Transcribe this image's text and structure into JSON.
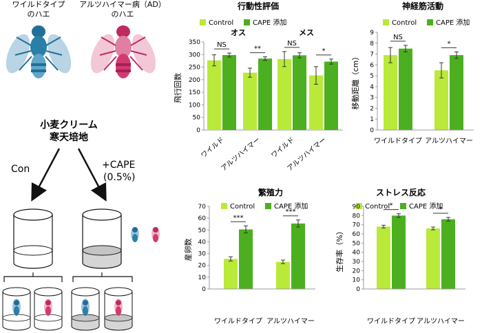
{
  "left": {
    "wild_fly_label": [
      "ワイルドタイプ",
      "のハエ"
    ],
    "ad_fly_label": [
      "アルツハイマー病（AD）",
      "のハエ"
    ],
    "medium_label": [
      "小麦クリーム",
      "寒天培地"
    ],
    "con_label": "Con",
    "cape_label": [
      "+CAPE",
      "(0.5%)"
    ]
  },
  "colors": {
    "control": "#b9ea3a",
    "cape": "#4caf1f",
    "blue_fly": "#2a7fa8",
    "pink_fly": "#d23a72"
  },
  "chart_data": [
    {
      "type": "bar",
      "title": "行動性評価",
      "subtitle_male": "オス",
      "subtitle_female": "メス",
      "ylabel": "飛行回数",
      "ylim": [
        0,
        350
      ],
      "yticks": [
        0,
        50,
        100,
        150,
        200,
        250,
        300,
        350
      ],
      "legend": [
        "Control",
        "CAPE 添加"
      ],
      "panels": [
        {
          "name": "オス",
          "categories": [
            "ワイルド",
            "アルツハイマー"
          ],
          "series": [
            {
              "name": "Control",
              "values": [
                277,
                228
              ],
              "errors": [
                22,
                18
              ]
            },
            {
              "name": "CAPE 添加",
              "values": [
                298,
                284
              ],
              "errors": [
                8,
                7
              ]
            }
          ],
          "significance": [
            "NS",
            "**"
          ]
        },
        {
          "name": "メス",
          "categories": [
            "ワイルド",
            "アルツハイマー"
          ],
          "series": [
            {
              "name": "Control",
              "values": [
                282,
                217
              ],
              "errors": [
                30,
                35
              ]
            },
            {
              "name": "CAPE 添加",
              "values": [
                297,
                272
              ],
              "errors": [
                10,
                10
              ]
            }
          ],
          "significance": [
            "NS",
            "*"
          ]
        }
      ]
    },
    {
      "type": "bar",
      "title": "神経筋活動",
      "ylabel": "移動距離（cm）",
      "ylim": [
        0,
        9
      ],
      "yticks": [
        0,
        1,
        2,
        3,
        4,
        5,
        6,
        7,
        8,
        9
      ],
      "legend": [
        "Control",
        "CAPE 添加"
      ],
      "categories": [
        "ワイルドタイプ",
        "アルツハイマー"
      ],
      "series": [
        {
          "name": "Control",
          "values": [
            6.9,
            5.5
          ],
          "errors": [
            0.7,
            0.7
          ]
        },
        {
          "name": "CAPE 添加",
          "values": [
            7.5,
            6.9
          ],
          "errors": [
            0.3,
            0.3
          ]
        }
      ],
      "significance": [
        "NS",
        "*"
      ]
    },
    {
      "type": "bar",
      "title": "繁殖力",
      "ylabel": "産卵数",
      "ylim": [
        0,
        70
      ],
      "yticks": [
        0,
        10,
        20,
        30,
        40,
        50,
        60,
        70
      ],
      "legend": [
        "Control",
        "CAPE 添加"
      ],
      "categories": [
        "ワイルドタイプ",
        "アルツハイマー"
      ],
      "series": [
        {
          "name": "Control",
          "values": [
            25.5,
            23
          ],
          "errors": [
            1.8,
            1.5
          ]
        },
        {
          "name": "CAPE 添加",
          "values": [
            50.5,
            55.5
          ],
          "errors": [
            3,
            3
          ]
        }
      ],
      "significance": [
        "***",
        "***"
      ]
    },
    {
      "type": "bar",
      "title": "ストレス反応",
      "ylabel": "生存率（%）",
      "ylim": [
        0,
        90
      ],
      "yticks": [
        0,
        10,
        20,
        30,
        40,
        50,
        60,
        70,
        80,
        90
      ],
      "legend": [
        "Control",
        "CAPE 添加"
      ],
      "categories": [
        "ワイルドタイプ",
        "アルツハイマー"
      ],
      "series": [
        {
          "name": "Control",
          "values": [
            68,
            66
          ],
          "errors": [
            1.5,
            1.5
          ]
        },
        {
          "name": "CAPE 添加",
          "values": [
            80,
            76
          ],
          "errors": [
            2,
            2
          ]
        }
      ],
      "significance": [
        "*",
        "*"
      ]
    }
  ]
}
